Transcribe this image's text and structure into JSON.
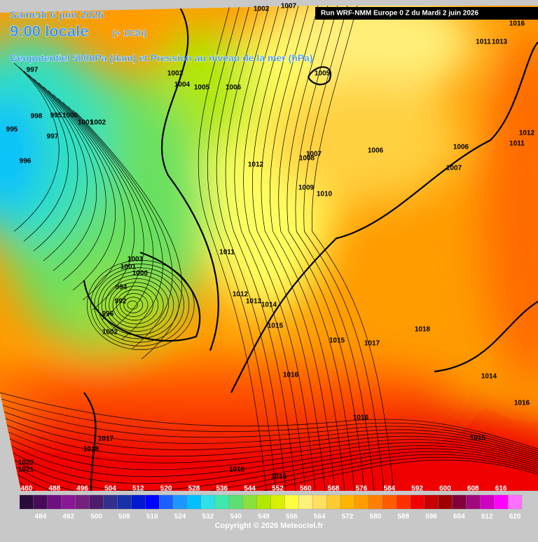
{
  "header": {
    "date": "Samedi 6 juin 2026",
    "time": "9:00 locale",
    "lead": "(+ 103h)",
    "subtitle": "Geopotentiel 500hPa (dam) et Pression au niveau de la mer (hPa)",
    "run": "Run WRF-NMM Europe 0 Z du Mardi 2 juin 2026"
  },
  "isobar_labels": [
    1002,
    1007,
    1016,
    1011,
    1013,
    997,
    1003,
    1004,
    1005,
    1006,
    1005,
    998,
    995,
    1000,
    1001,
    1002,
    995,
    997,
    996,
    1012,
    1007,
    1008,
    1006,
    1006,
    1007,
    1012,
    1011,
    1009,
    1010,
    1011,
    1003,
    1001,
    1000,
    994,
    992,
    996,
    1002,
    1012,
    1013,
    1014,
    1015,
    1018,
    1015,
    1017,
    1016,
    1014,
    1016,
    1016,
    1015,
    1017,
    1018,
    1022,
    1021,
    1016,
    1015
  ],
  "colorbar": {
    "values": [
      480,
      484,
      488,
      492,
      496,
      500,
      504,
      508,
      512,
      516,
      520,
      524,
      528,
      532,
      536,
      540,
      544,
      548,
      552,
      556,
      560,
      564,
      568,
      572,
      576,
      580,
      584,
      588,
      592,
      596,
      600,
      604,
      608,
      612,
      616,
      620
    ],
    "colors": [
      "#2a0a3a",
      "#4a0a5c",
      "#6e1080",
      "#8a1896",
      "#74207e",
      "#4e1c6c",
      "#33308e",
      "#1830a8",
      "#0018d0",
      "#0000ff",
      "#1a60ff",
      "#1e96ff",
      "#00c0ff",
      "#30e0e8",
      "#40e8b0",
      "#5ce070",
      "#8ae03c",
      "#b0e800",
      "#d8f000",
      "#ffff40",
      "#fff07a",
      "#ffe060",
      "#ffcc30",
      "#ffb400",
      "#ff9c00",
      "#ff8000",
      "#ff5c00",
      "#ff3000",
      "#f00000",
      "#c80000",
      "#a00000",
      "#82003a",
      "#a0087c",
      "#d000c0",
      "#ff00ff",
      "#ff70ff"
    ]
  },
  "footer": {
    "copyright": "Copyright © 2026 Meteociel.fr"
  }
}
